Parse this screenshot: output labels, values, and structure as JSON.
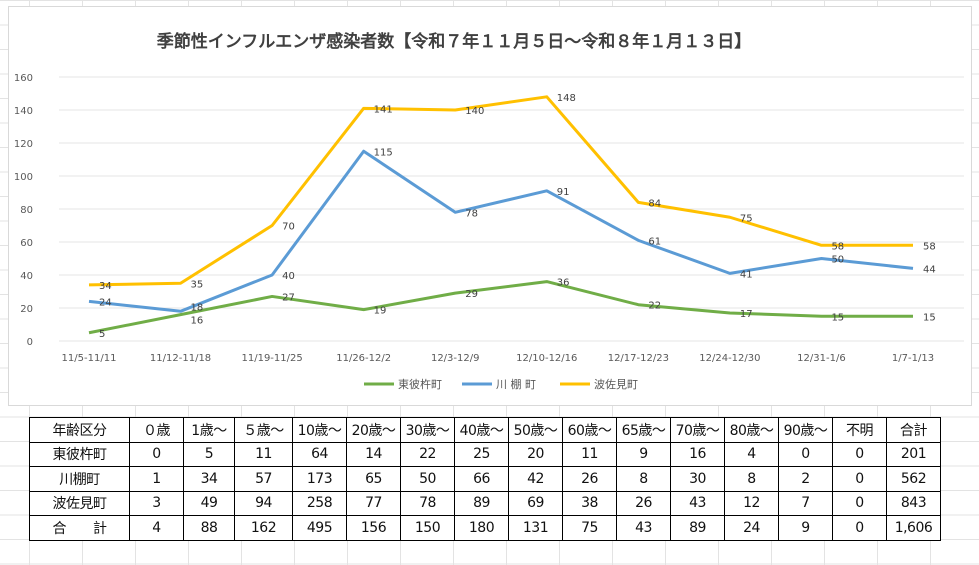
{
  "chart_data": {
    "type": "line",
    "title": "季節性インフルエンザ感染者数【令和７年１１月５日～令和８年１月１３日】",
    "categories": [
      "11/5-11/11",
      "11/12-11/18",
      "11/19-11/25",
      "11/26-12/2",
      "12/3-12/9",
      "12/10-12/16",
      "12/17-12/23",
      "12/24-12/30",
      "12/31-1/6",
      "1/7-1/13"
    ],
    "series": [
      {
        "name": "東彼杵町",
        "color": "#70ad47",
        "values": [
          5,
          16,
          27,
          19,
          29,
          36,
          22,
          17,
          15,
          15
        ]
      },
      {
        "name": "川 棚 町",
        "color": "#5b9bd5",
        "values": [
          24,
          18,
          40,
          115,
          78,
          91,
          61,
          41,
          50,
          44
        ]
      },
      {
        "name": "波佐見町",
        "color": "#ffc000",
        "values": [
          34,
          35,
          70,
          141,
          140,
          148,
          84,
          75,
          58,
          58
        ]
      }
    ],
    "yticks": [
      0,
      20,
      40,
      60,
      80,
      100,
      120,
      140,
      160
    ],
    "ylim": [
      0,
      160
    ],
    "xlabel": "",
    "ylabel": "",
    "grid": true,
    "legend": "bottom"
  },
  "table": {
    "header": [
      "年齢区分",
      "０歳",
      "1歳～",
      "５歳～",
      "10歳～",
      "20歳～",
      "30歳～",
      "40歳～",
      "50歳～",
      "60歳～",
      "65歳～",
      "70歳～",
      "80歳～",
      "90歳～",
      "不明",
      "合計"
    ],
    "rows": [
      [
        "東彼杵町",
        "0",
        "5",
        "11",
        "64",
        "14",
        "22",
        "25",
        "20",
        "11",
        "9",
        "16",
        "4",
        "0",
        "0",
        "201"
      ],
      [
        "川棚町",
        "1",
        "34",
        "57",
        "173",
        "65",
        "50",
        "66",
        "42",
        "26",
        "8",
        "30",
        "8",
        "2",
        "0",
        "562"
      ],
      [
        "波佐見町",
        "3",
        "49",
        "94",
        "258",
        "77",
        "78",
        "89",
        "69",
        "38",
        "26",
        "43",
        "12",
        "7",
        "0",
        "843"
      ],
      [
        "合　　計",
        "4",
        "88",
        "162",
        "495",
        "156",
        "150",
        "180",
        "131",
        "75",
        "43",
        "89",
        "24",
        "9",
        "0",
        "1,606"
      ]
    ]
  }
}
